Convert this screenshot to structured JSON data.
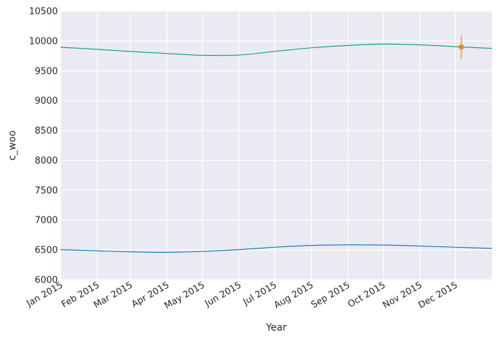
{
  "chart_data": {
    "type": "line",
    "title": "",
    "xlabel": "Year",
    "ylabel": "c_woo",
    "ylim": [
      6000,
      10500
    ],
    "xlim": [
      "2015-01-01",
      "2016-01-01"
    ],
    "y_ticks": [
      6000,
      6500,
      7000,
      7500,
      8000,
      8500,
      9000,
      9500,
      10000,
      10500
    ],
    "x_ticks": [
      {
        "date": "2015-01-01",
        "label": "Jan 2015"
      },
      {
        "date": "2015-02-01",
        "label": "Feb 2015"
      },
      {
        "date": "2015-03-01",
        "label": "Mar 2015"
      },
      {
        "date": "2015-04-01",
        "label": "Apr 2015"
      },
      {
        "date": "2015-05-01",
        "label": "May 2015"
      },
      {
        "date": "2015-06-01",
        "label": "Jun 2015"
      },
      {
        "date": "2015-07-01",
        "label": "Jul 2015"
      },
      {
        "date": "2015-08-01",
        "label": "Aug 2015"
      },
      {
        "date": "2015-09-01",
        "label": "Sep 2015"
      },
      {
        "date": "2015-10-01",
        "label": "Oct 2015"
      },
      {
        "date": "2015-11-01",
        "label": "Nov 2015"
      },
      {
        "date": "2015-12-01",
        "label": "Dec 2015"
      }
    ],
    "grid": true,
    "background": "#eaeaf2",
    "series": [
      {
        "color": "#0072b2",
        "points": [
          [
            "2015-01-01",
            6505
          ],
          [
            "2015-02-01",
            6485
          ],
          [
            "2015-03-01",
            6468
          ],
          [
            "2015-04-01",
            6460
          ],
          [
            "2015-05-01",
            6475
          ],
          [
            "2015-06-01",
            6505
          ],
          [
            "2015-07-01",
            6545
          ],
          [
            "2015-08-01",
            6575
          ],
          [
            "2015-09-01",
            6585
          ],
          [
            "2015-10-01",
            6582
          ],
          [
            "2015-11-01",
            6565
          ],
          [
            "2015-12-01",
            6545
          ],
          [
            "2016-01-01",
            6525
          ]
        ]
      },
      {
        "color": "#009e73",
        "points": [
          [
            "2015-01-01",
            9895
          ],
          [
            "2015-02-01",
            9860
          ],
          [
            "2015-03-01",
            9825
          ],
          [
            "2015-04-01",
            9790
          ],
          [
            "2015-05-01",
            9760
          ],
          [
            "2015-06-01",
            9765
          ],
          [
            "2015-07-01",
            9825
          ],
          [
            "2015-08-01",
            9885
          ],
          [
            "2015-09-01",
            9925
          ],
          [
            "2015-10-01",
            9948
          ],
          [
            "2015-11-01",
            9935
          ],
          [
            "2015-12-01",
            9905
          ],
          [
            "2016-01-01",
            9875
          ]
        ]
      }
    ],
    "observation": {
      "date": "2015-12-06",
      "value": 9900,
      "error_low": 9700,
      "error_high": 10100,
      "color": "#e08a2c"
    }
  }
}
